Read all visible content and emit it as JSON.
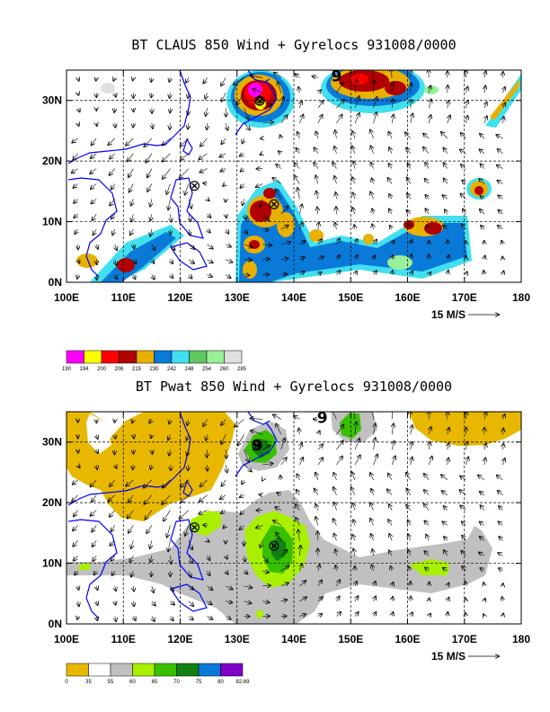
{
  "chart_data": [
    {
      "type": "heatmap",
      "title": "BT CLAUS 850 Wind + Gyrelocs 931008/0000",
      "x_ticks": [
        "100E",
        "110E",
        "120E",
        "130E",
        "140E",
        "150E",
        "160E",
        "170E",
        "180"
      ],
      "y_ticks": [
        "0N",
        "10N",
        "20N",
        "30N"
      ],
      "xlim": [
        100,
        180
      ],
      "ylim": [
        0,
        35
      ],
      "grid": true,
      "vector_reference": "15 M/S",
      "colorbar_labels": [
        "190",
        "194",
        "200",
        "206",
        "215",
        "230",
        "242",
        "248",
        "254",
        "260",
        "285"
      ],
      "colorbar_colors": [
        "#ff00ff",
        "#ffff00",
        "#ff0000",
        "#b00000",
        "#e8b000",
        "#0a7ad8",
        "#40e0f0",
        "#60c860",
        "#98f098",
        "#e0e0e0"
      ],
      "gyre_markers": [
        {
          "lon": 122.5,
          "lat": 16,
          "symbol": "⊗"
        },
        {
          "lon": 136.5,
          "lat": 13,
          "symbol": "⊗"
        },
        {
          "lon": 134,
          "lat": 30,
          "symbol": "⊗"
        }
      ],
      "typhoon_symbols": [
        {
          "lon": 134,
          "lat": 30,
          "symbol": "✡"
        },
        {
          "lon": 147.5,
          "lat": 34,
          "symbol": "9"
        }
      ]
    },
    {
      "type": "heatmap",
      "title": "BT Pwat 850 Wind + Gyrelocs 931008/0000",
      "x_ticks": [
        "100E",
        "110E",
        "120E",
        "130E",
        "140E",
        "150E",
        "160E",
        "170E",
        "180"
      ],
      "y_ticks": [
        "0N",
        "10N",
        "20N",
        "30N"
      ],
      "xlim": [
        100,
        180
      ],
      "ylim": [
        0,
        35
      ],
      "grid": true,
      "vector_reference": "15 M/S",
      "colorbar_labels": [
        "0",
        "35",
        "55",
        "60",
        "65",
        "70",
        "75",
        "80",
        "82.69"
      ],
      "colorbar_colors": [
        "#e8b800",
        "#ffffff",
        "#c0c0c0",
        "#a8f000",
        "#38c000",
        "#108010",
        "#0a7ad8",
        "#8000c8"
      ],
      "gyre_markers": [
        {
          "lon": 122.5,
          "lat": 16,
          "symbol": "⊗"
        },
        {
          "lon": 136.5,
          "lat": 13,
          "symbol": "⊗"
        },
        {
          "lon": 133.5,
          "lat": 29.5,
          "symbol": "⊗"
        }
      ],
      "typhoon_symbols": [
        {
          "lon": 133.5,
          "lat": 29.5,
          "symbol": "9"
        },
        {
          "lon": 145,
          "lat": 34,
          "symbol": "9"
        }
      ]
    }
  ]
}
